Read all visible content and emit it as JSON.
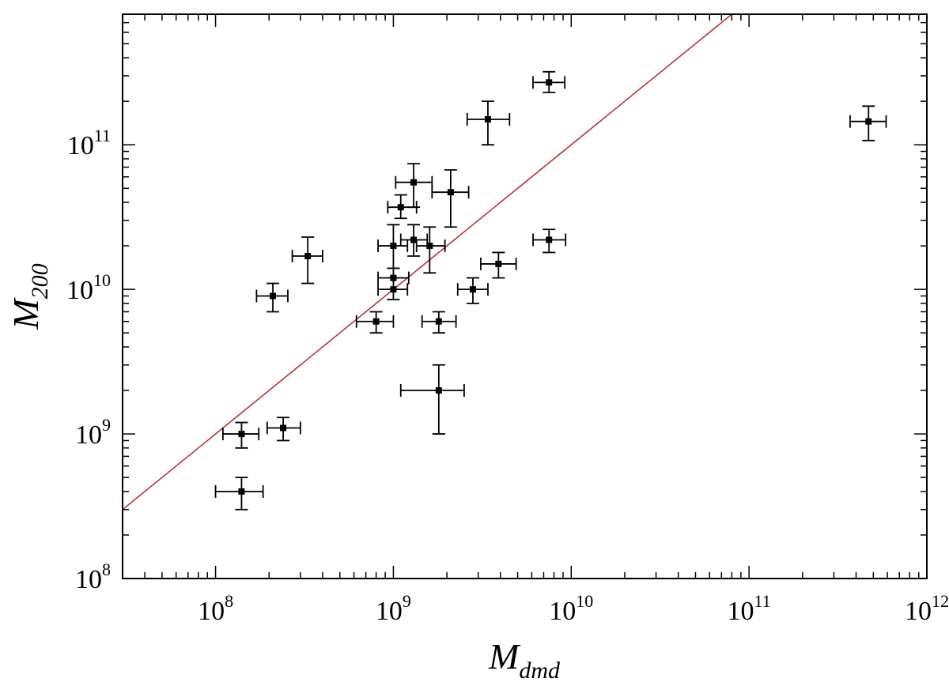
{
  "chart_data": {
    "type": "scatter",
    "title": "",
    "xlabel": {
      "main": "M",
      "sub": "dmd"
    },
    "ylabel": {
      "main": "M",
      "sub": "200"
    },
    "x_scale": "log",
    "y_scale": "log",
    "xlim": [
      30000000.0,
      1000000000000.0
    ],
    "ylim": [
      100000000.0,
      800000000000.0
    ],
    "x_ticks": [
      {
        "value": 100000000.0,
        "base": "10",
        "exp": "8"
      },
      {
        "value": 1000000000.0,
        "base": "10",
        "exp": "9"
      },
      {
        "value": 10000000000.0,
        "base": "10",
        "exp": "10"
      },
      {
        "value": 100000000000.0,
        "base": "10",
        "exp": "11"
      },
      {
        "value": 1000000000000.0,
        "base": "10",
        "exp": "12"
      }
    ],
    "y_ticks": [
      {
        "value": 100000000.0,
        "base": "10",
        "exp": "8"
      },
      {
        "value": 1000000000.0,
        "base": "10",
        "exp": "9"
      },
      {
        "value": 10000000000.0,
        "base": "10",
        "exp": "10"
      },
      {
        "value": 100000000000.0,
        "base": "10",
        "exp": "11"
      }
    ],
    "grid": false,
    "legend": "none",
    "marker_color": "#000000",
    "line_color": "#c0303a",
    "reference_line": {
      "type": "one-to-one",
      "from": [
        30000000.0,
        300000000.0
      ],
      "to": [
        80000000000.0,
        800000000000.0
      ]
    },
    "points": [
      {
        "x": 7500000000.0,
        "xerr": [
          6100000000.0,
          9200000000.0
        ],
        "y": 270000000000.0,
        "yerr": [
          230000000000.0,
          320000000000.0
        ]
      },
      {
        "x": 3400000000.0,
        "xerr": [
          2600000000.0,
          4500000000.0
        ],
        "y": 150000000000.0,
        "yerr": [
          100000000000.0,
          200000000000.0
        ]
      },
      {
        "x": 470000000000.0,
        "xerr": [
          370000000000.0,
          590000000000.0
        ],
        "y": 145000000000.0,
        "yerr": [
          107000000000.0,
          185000000000.0
        ]
      },
      {
        "x": 1300000000.0,
        "xerr": [
          1030000000.0,
          1650000000.0
        ],
        "y": 55000000000.0,
        "yerr": [
          37000000000.0,
          74000000000.0
        ]
      },
      {
        "x": 2100000000.0,
        "xerr": [
          1650000000.0,
          2650000000.0
        ],
        "y": 47000000000.0,
        "yerr": [
          27000000000.0,
          67000000000.0
        ]
      },
      {
        "x": 1100000000.0,
        "xerr": [
          930000000.0,
          1350000000.0
        ],
        "y": 37000000000.0,
        "yerr": [
          31000000000.0,
          45000000000.0
        ]
      },
      {
        "x": 1300000000.0,
        "xerr": [
          1100000000.0,
          1550000000.0
        ],
        "y": 22000000000.0,
        "yerr": [
          17000000000.0,
          28000000000.0
        ]
      },
      {
        "x": 1000000000.0,
        "xerr": [
          820000000.0,
          1200000000.0
        ],
        "y": 20000000000.0,
        "yerr": [
          14000000000.0,
          28000000000.0
        ]
      },
      {
        "x": 1600000000.0,
        "xerr": [
          1350000000.0,
          1950000000.0
        ],
        "y": 20000000000.0,
        "yerr": [
          13000000000.0,
          27000000000.0
        ]
      },
      {
        "x": 7500000000.0,
        "xerr": [
          6100000000.0,
          9300000000.0
        ],
        "y": 22000000000.0,
        "yerr": [
          18000000000.0,
          26000000000.0
        ]
      },
      {
        "x": 330000000.0,
        "xerr": [
          270000000.0,
          400000000.0
        ],
        "y": 17000000000.0,
        "yerr": [
          11000000000.0,
          23000000000.0
        ]
      },
      {
        "x": 3900000000.0,
        "xerr": [
          3100000000.0,
          4900000000.0
        ],
        "y": 15000000000.0,
        "yerr": [
          12000000000.0,
          18000000000.0
        ]
      },
      {
        "x": 1000000000.0,
        "xerr": [
          820000000.0,
          1220000000.0
        ],
        "y": 12000000000.0,
        "yerr": [
          10000000000.0,
          14000000000.0
        ]
      },
      {
        "x": 1000000000.0,
        "xerr": [
          820000000.0,
          1200000000.0
        ],
        "y": 10000000000.0,
        "yerr": [
          8500000000.0,
          12000000000.0
        ]
      },
      {
        "x": 2800000000.0,
        "xerr": [
          2300000000.0,
          3400000000.0
        ],
        "y": 10000000000.0,
        "yerr": [
          8000000000.0,
          12000000000.0
        ]
      },
      {
        "x": 210000000.0,
        "xerr": [
          170000000.0,
          255000000.0
        ],
        "y": 9000000000.0,
        "yerr": [
          7000000000.0,
          11000000000.0
        ]
      },
      {
        "x": 800000000.0,
        "xerr": [
          620000000.0,
          1000000000.0
        ],
        "y": 6000000000.0,
        "yerr": [
          5000000000.0,
          7000000000.0
        ]
      },
      {
        "x": 1800000000.0,
        "xerr": [
          1450000000.0,
          2250000000.0
        ],
        "y": 6000000000.0,
        "yerr": [
          5000000000.0,
          7000000000.0
        ]
      },
      {
        "x": 1800000000.0,
        "xerr": [
          1100000000.0,
          2500000000.0
        ],
        "y": 2000000000.0,
        "yerr": [
          1000000000.0,
          3000000000.0
        ]
      },
      {
        "x": 140000000.0,
        "xerr": [
          110000000.0,
          175000000.0
        ],
        "y": 1000000000.0,
        "yerr": [
          800000000.0,
          1200000000.0
        ]
      },
      {
        "x": 240000000.0,
        "xerr": [
          195000000.0,
          300000000.0
        ],
        "y": 1100000000.0,
        "yerr": [
          900000000.0,
          1300000000.0
        ]
      },
      {
        "x": 140000000.0,
        "xerr": [
          100000000.0,
          185000000.0
        ],
        "y": 400000000.0,
        "yerr": [
          300000000.0,
          500000000.0
        ]
      }
    ]
  }
}
